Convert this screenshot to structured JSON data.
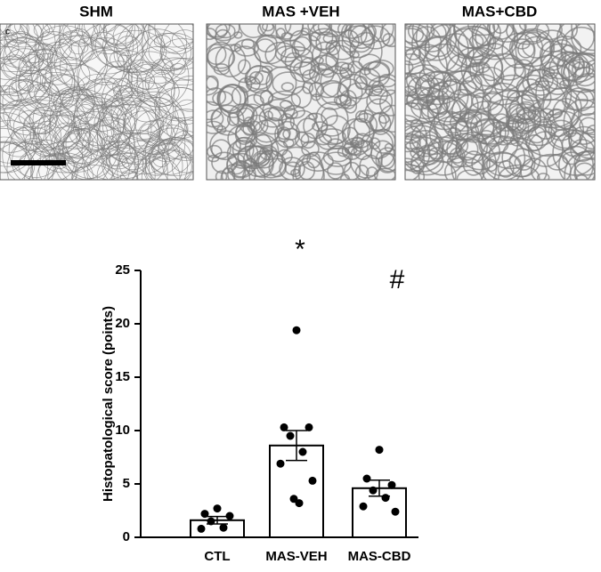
{
  "panels": [
    {
      "title": "SHM",
      "label": "c"
    },
    {
      "title": "MAS +VEH"
    },
    {
      "title": "MAS+CBD"
    }
  ],
  "chart_data": {
    "type": "bar",
    "y_label": "Histopatological score (points)",
    "categories": [
      "CTL",
      "MAS-VEH",
      "MAS-CBD"
    ],
    "values": [
      1.6,
      8.6,
      4.6
    ],
    "errors": [
      0.35,
      1.4,
      0.75
    ],
    "points": [
      [
        2.7,
        2.2,
        2.0,
        1.5,
        0.9,
        0.8
      ],
      [
        19.4,
        10.3,
        10.3,
        9.5,
        8.0,
        6.9,
        5.3,
        3.6,
        3.2
      ],
      [
        8.2,
        5.5,
        4.9,
        4.4,
        3.7,
        2.9,
        2.4
      ]
    ],
    "annotations": [
      null,
      "*",
      "#"
    ],
    "color": "#ffffff",
    "edge_color": "#000000",
    "point_color": "#000000",
    "ylim": [
      0,
      25
    ],
    "yticks": [
      0,
      5,
      10,
      15,
      20,
      25
    ]
  }
}
